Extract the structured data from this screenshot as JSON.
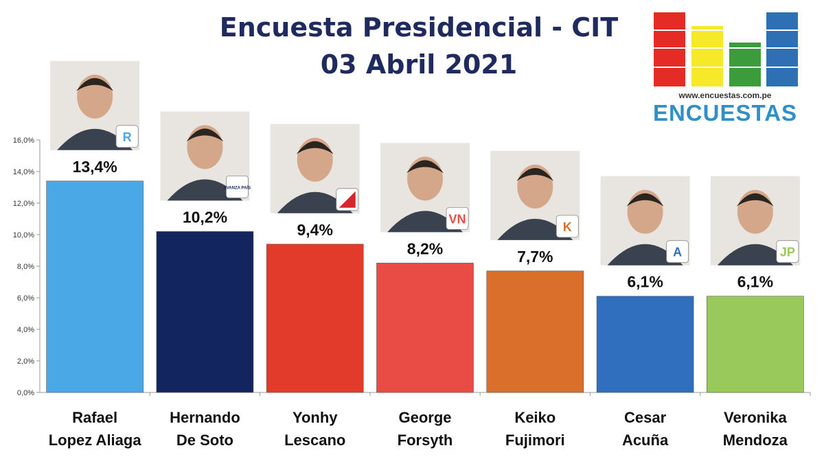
{
  "header": {
    "title_line1": "Encuesta Presidencial - CIT",
    "title_line2": "03 Abril 2021"
  },
  "logo": {
    "url": "www.encuestas.com.pe",
    "name": "ENCUESTAS",
    "bar_colors": [
      "#e52b25",
      "#f5e92a",
      "#3c9c3c",
      "#2f6fb3"
    ]
  },
  "chart_data": {
    "type": "bar",
    "title": "Encuesta Presidencial - CIT",
    "subtitle": "03 Abril 2021",
    "categories": [
      [
        "Rafael",
        "Lopez Aliaga"
      ],
      [
        "Hernando",
        "De Soto"
      ],
      [
        "Yonhy",
        "Lescano"
      ],
      [
        "George",
        "Forsyth"
      ],
      [
        "Keiko",
        "Fujimori"
      ],
      [
        "Cesar",
        "Acuña"
      ],
      [
        "Veronika",
        "Mendoza"
      ]
    ],
    "values": [
      13.4,
      10.2,
      9.4,
      8.2,
      7.7,
      6.1,
      6.1
    ],
    "value_labels": [
      "13,4%",
      "10,2%",
      "9,4%",
      "8,2%",
      "7,7%",
      "6,1%",
      "6,1%"
    ],
    "colors": [
      "#4aa8e6",
      "#13255f",
      "#e23b2c",
      "#e84c45",
      "#d96f2b",
      "#2f6fbd",
      "#98c95a"
    ],
    "party_icons": [
      "R",
      "AVANZA PAÍS",
      "",
      "VN",
      "K",
      "A",
      "JP"
    ],
    "party_icon_names": [
      "renovacion-popular-icon",
      "avanza-pais-icon",
      "accion-popular-icon",
      "victoria-nacional-icon",
      "fuerza-popular-icon",
      "app-icon",
      "juntos-peru-icon"
    ],
    "yticks": [
      "0,0%",
      "2,0%",
      "4,0%",
      "6,0%",
      "8,0%",
      "10,0%",
      "12,0%",
      "14,0%",
      "16,0%"
    ],
    "ylim": [
      0,
      16
    ],
    "xlabel": "",
    "ylabel": "",
    "grid": false,
    "legend": "none"
  }
}
